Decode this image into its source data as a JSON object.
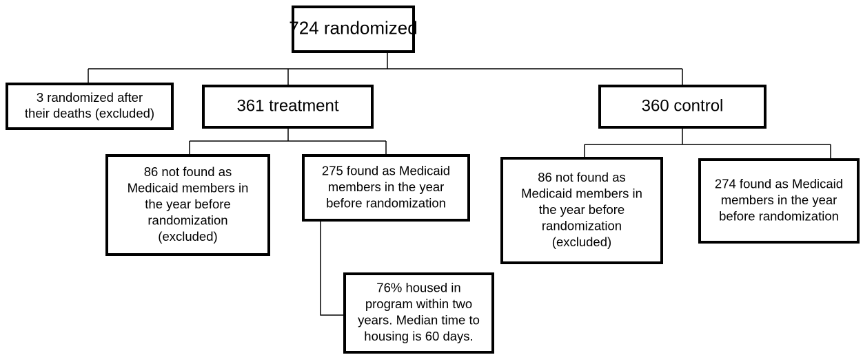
{
  "nodes": [
    {
      "lines": [
        "724 randomized"
      ]
    },
    {
      "lines": [
        "3 randomized after",
        "their deaths (excluded)"
      ]
    },
    {
      "lines": [
        "361 treatment"
      ]
    },
    {
      "lines": [
        "360 control"
      ]
    },
    {
      "lines": [
        "86 not found as",
        "Medicaid members in",
        "the year before",
        "randomization",
        "(excluded)"
      ]
    },
    {
      "lines": [
        "275 found as Medicaid",
        "members in the year",
        "before randomization"
      ]
    },
    {
      "lines": [
        "86 not found as",
        "Medicaid members in",
        "the year before",
        "randomization",
        "(excluded)"
      ]
    },
    {
      "lines": [
        "274 found as Medicaid",
        "members in the year",
        "before randomization"
      ]
    },
    {
      "lines": [
        "76% housed in",
        "program within two",
        "years. Median time to",
        "housing is 60 days."
      ]
    }
  ]
}
